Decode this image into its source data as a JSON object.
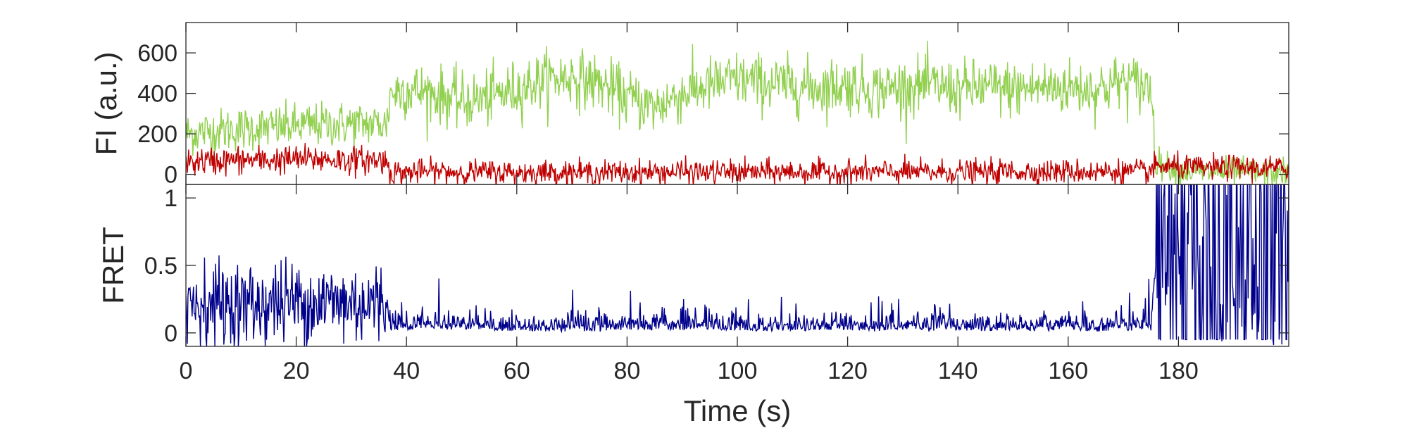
{
  "chart_data": [
    {
      "type": "line",
      "ylabel": "FI (a.u.)",
      "xlim": [
        0,
        200
      ],
      "ylim": [
        -50,
        750
      ],
      "yticks": [
        0,
        200,
        400,
        600
      ],
      "grid": false,
      "legend": "none",
      "series": [
        {
          "color": "#92d050",
          "x": [
            0,
            5,
            10,
            15,
            20,
            25,
            30,
            35,
            36.5,
            37,
            40,
            45,
            50,
            55,
            60,
            65,
            70,
            75,
            80,
            85,
            90,
            95,
            100,
            105,
            110,
            115,
            120,
            125,
            130,
            135,
            140,
            145,
            150,
            155,
            160,
            165,
            170,
            175,
            176,
            180,
            185,
            190,
            195,
            200
          ],
          "y": [
            200,
            215,
            225,
            230,
            240,
            245,
            250,
            250,
            245,
            400,
            420,
            400,
            360,
            380,
            420,
            470,
            480,
            450,
            380,
            330,
            400,
            440,
            470,
            450,
            440,
            430,
            440,
            420,
            430,
            440,
            420,
            430,
            420,
            430,
            430,
            420,
            460,
            430,
            60,
            20,
            10,
            15,
            5,
            10
          ]
        },
        {
          "color": "#c00000",
          "x": [
            0,
            5,
            10,
            15,
            20,
            25,
            30,
            35,
            36.5,
            37,
            40,
            45,
            50,
            55,
            60,
            65,
            70,
            75,
            80,
            85,
            90,
            95,
            100,
            105,
            110,
            115,
            120,
            125,
            130,
            135,
            140,
            145,
            150,
            155,
            160,
            165,
            170,
            175,
            176,
            180,
            185,
            190,
            195,
            200
          ],
          "y": [
            60,
            65,
            70,
            70,
            75,
            75,
            70,
            70,
            65,
            10,
            10,
            15,
            10,
            12,
            8,
            10,
            10,
            8,
            10,
            10,
            12,
            10,
            12,
            10,
            12,
            10,
            12,
            10,
            12,
            10,
            12,
            10,
            15,
            12,
            15,
            12,
            15,
            12,
            40,
            35,
            30,
            35,
            30,
            30
          ]
        }
      ]
    },
    {
      "type": "line",
      "xlabel": "Time (s)",
      "ylabel": "FRET",
      "xlim": [
        0,
        200
      ],
      "ylim": [
        -0.1,
        1.1
      ],
      "xticks": [
        0,
        20,
        40,
        60,
        80,
        100,
        120,
        140,
        160,
        180
      ],
      "yticks": [
        0,
        0.5,
        1
      ],
      "grid": false,
      "legend": "none",
      "series": [
        {
          "color": "#00008b",
          "x": [
            0,
            5,
            10,
            15,
            20,
            25,
            30,
            35,
            36.5,
            37,
            40,
            45,
            50,
            55,
            60,
            65,
            70,
            75,
            80,
            85,
            90,
            95,
            100,
            105,
            110,
            115,
            120,
            125,
            130,
            135,
            140,
            145,
            150,
            155,
            160,
            165,
            170,
            175,
            176,
            180,
            185,
            190,
            195,
            200
          ],
          "y": [
            0.22,
            0.22,
            0.2,
            0.22,
            0.23,
            0.23,
            0.22,
            0.22,
            0.2,
            0.03,
            0.04,
            0.05,
            0.04,
            0.04,
            0.03,
            0.03,
            0.03,
            0.03,
            0.04,
            0.04,
            0.04,
            0.04,
            0.04,
            0.03,
            0.04,
            0.03,
            0.04,
            0.03,
            0.04,
            0.03,
            0.04,
            0.03,
            0.04,
            0.03,
            0.04,
            0.03,
            0.04,
            0.03,
            0.55,
            0.55,
            0.55,
            0.55,
            0.55,
            0.55
          ]
        }
      ]
    }
  ]
}
